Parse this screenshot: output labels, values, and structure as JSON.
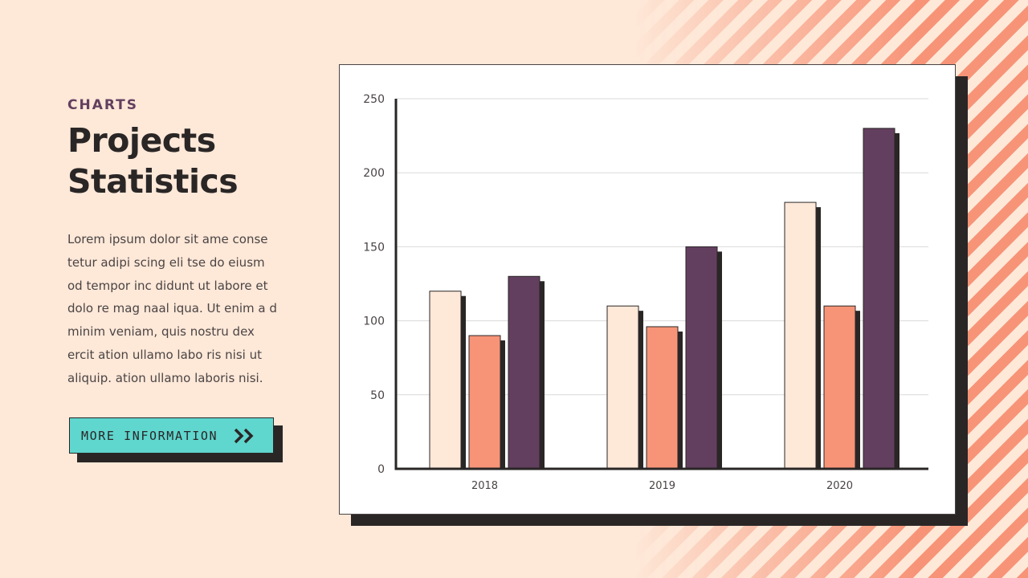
{
  "eyebrow": "CHARTS",
  "title_line1": "Projects",
  "title_line2": "Statistics",
  "body": "Lorem ipsum dolor sit ame conse tetur adipi scing eli tse do eiusm od tempor inc didunt ut labore et dolo re mag naal iqua. Ut enim a d minim veniam, quis nostru dex ercit ation ullamo labo ris nisi ut aliquip. ation ullamo laboris nisi.",
  "button": {
    "label": "MORE INFORMATION",
    "icon": "double-chevron-right-icon"
  },
  "colors": {
    "background": "#fee8d8",
    "accent_salmon": "#f79478",
    "accent_plum": "#633f5f",
    "accent_teal": "#5fd6ce",
    "ink": "#2a2626"
  },
  "chart_data": {
    "type": "bar",
    "categories": [
      "2018",
      "2019",
      "2020"
    ],
    "series": [
      {
        "values": [
          120,
          110,
          180
        ],
        "color": "#fee8d8"
      },
      {
        "values": [
          90,
          96,
          110
        ],
        "color": "#f79478"
      },
      {
        "values": [
          130,
          150,
          230
        ],
        "color": "#633f5f"
      }
    ],
    "yticks": [
      "0",
      "50",
      "100",
      "150",
      "200",
      "250"
    ],
    "ylim": [
      0,
      250
    ],
    "grid": true,
    "title": "",
    "xlabel": "",
    "ylabel": ""
  }
}
